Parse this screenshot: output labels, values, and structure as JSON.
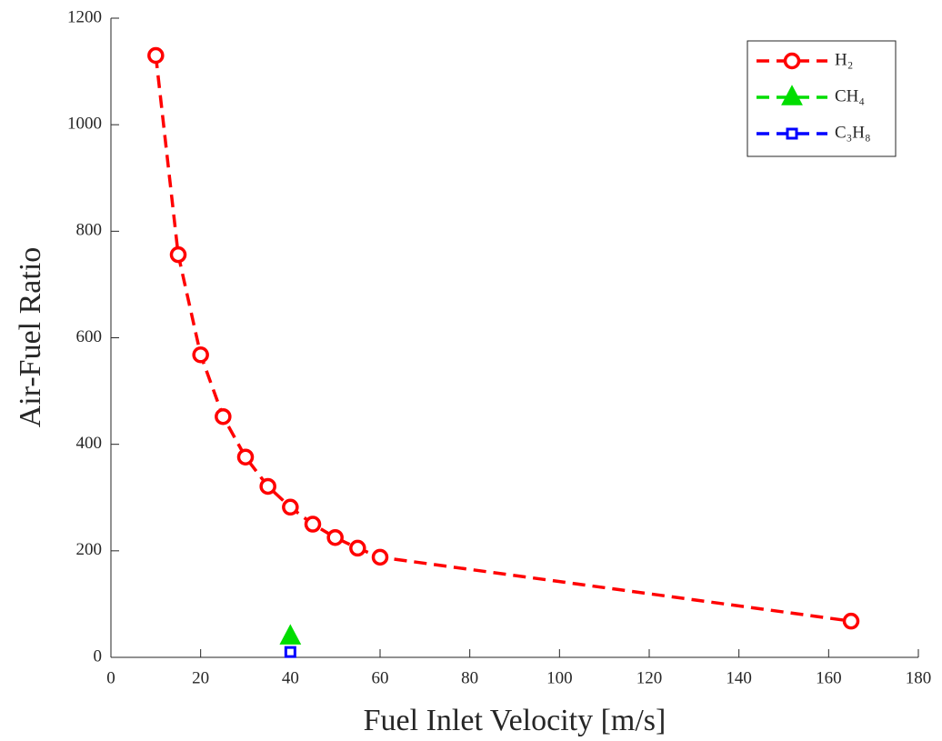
{
  "chart_data": {
    "type": "line",
    "xlabel": "Fuel Inlet Velocity [m/s]",
    "ylabel": "Air-Fuel Ratio",
    "xlim": [
      0,
      180
    ],
    "xticks": [
      0,
      20,
      40,
      60,
      80,
      100,
      120,
      140,
      160,
      180
    ],
    "ylim": [
      0,
      1200
    ],
    "yticks": [
      0,
      200,
      400,
      600,
      800,
      1000,
      1200
    ],
    "grid": false,
    "legend": "top-right",
    "series": [
      {
        "name": "H₂",
        "color": "#ff0000",
        "marker": "circle",
        "x": [
          10,
          15,
          20,
          25,
          30,
          35,
          40,
          45,
          50,
          55,
          60,
          165
        ],
        "values": [
          1130,
          756,
          568,
          452,
          376,
          321,
          282,
          250,
          225,
          205,
          188,
          68
        ]
      },
      {
        "name": "CH₄",
        "color": "#00dd00",
        "marker": "triangle",
        "x": [
          40
        ],
        "values": [
          39
        ]
      },
      {
        "name": "C₃H₈",
        "color": "#0000ff",
        "marker": "square",
        "x": [
          40
        ],
        "values": [
          10
        ]
      }
    ]
  }
}
